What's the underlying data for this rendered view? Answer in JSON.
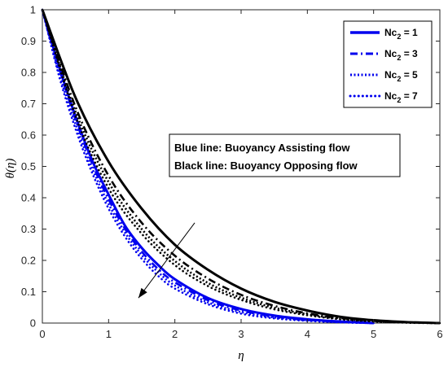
{
  "chart_data": {
    "type": "line",
    "xlabel": "η",
    "ylabel": "θ(η)",
    "xlim": [
      0,
      6
    ],
    "ylim": [
      0,
      1
    ],
    "xticks": [
      0,
      1,
      2,
      3,
      4,
      5,
      6
    ],
    "yticks": [
      0,
      0.1,
      0.2,
      0.3,
      0.4,
      0.5,
      0.6,
      0.7,
      0.8,
      0.9,
      1
    ],
    "grid": false,
    "legend_position": "top-right",
    "legend": [
      {
        "prefix": "Nc",
        "subscript": "2",
        "suffix": " = 1",
        "style": "solid"
      },
      {
        "prefix": "Nc",
        "subscript": "2",
        "suffix": " = 3",
        "style": "dash-dot"
      },
      {
        "prefix": "Nc",
        "subscript": "2",
        "suffix": " = 5",
        "style": "dotted"
      },
      {
        "prefix": "Nc",
        "subscript": "2",
        "suffix": " = 7",
        "style": "point"
      }
    ],
    "annotation": [
      "Blue line: Buoyancy Assisting flow",
      "Black line: Buoyancy Opposing flow"
    ],
    "arrow": {
      "from": [
        2.3,
        0.32
      ],
      "to": [
        1.45,
        0.08
      ]
    },
    "colors": {
      "assisting": "#0000ee",
      "opposing": "#000000"
    },
    "series": [
      {
        "flow": "assisting",
        "style": "solid",
        "x": [
          0,
          0.25,
          0.5,
          0.75,
          1,
          1.25,
          1.5,
          1.75,
          2,
          2.5,
          3,
          3.5,
          4,
          4.5,
          5
        ],
        "y": [
          1,
          0.82,
          0.66,
          0.52,
          0.41,
          0.31,
          0.24,
          0.185,
          0.14,
          0.08,
          0.045,
          0.024,
          0.012,
          0.005,
          0
        ]
      },
      {
        "flow": "assisting",
        "style": "dash-dot",
        "x": [
          0,
          0.25,
          0.5,
          0.75,
          1,
          1.25,
          1.5,
          1.75,
          2,
          2.5,
          3,
          3.5,
          4,
          4.5,
          5
        ],
        "y": [
          1,
          0.815,
          0.65,
          0.51,
          0.395,
          0.3,
          0.228,
          0.172,
          0.13,
          0.073,
          0.04,
          0.021,
          0.01,
          0.004,
          0
        ]
      },
      {
        "flow": "assisting",
        "style": "dotted",
        "x": [
          0,
          0.25,
          0.5,
          0.75,
          1,
          1.25,
          1.5,
          1.75,
          2,
          2.5,
          3,
          3.5,
          4,
          4.5,
          5
        ],
        "y": [
          1,
          0.8,
          0.635,
          0.495,
          0.38,
          0.288,
          0.217,
          0.162,
          0.12,
          0.066,
          0.035,
          0.018,
          0.009,
          0.003,
          0
        ]
      },
      {
        "flow": "assisting",
        "style": "point",
        "x": [
          0,
          0.25,
          0.5,
          0.75,
          1,
          1.25,
          1.5,
          1.75,
          2,
          2.5,
          3,
          3.5,
          4,
          4.5,
          5
        ],
        "y": [
          1,
          0.79,
          0.62,
          0.48,
          0.365,
          0.275,
          0.205,
          0.15,
          0.11,
          0.06,
          0.03,
          0.015,
          0.007,
          0.002,
          0
        ]
      },
      {
        "flow": "opposing",
        "style": "solid",
        "x": [
          0,
          0.5,
          1,
          1.5,
          2,
          2.5,
          3,
          3.5,
          4,
          4.5,
          5,
          5.5,
          6
        ],
        "y": [
          1,
          0.72,
          0.515,
          0.365,
          0.25,
          0.17,
          0.11,
          0.068,
          0.04,
          0.02,
          0.009,
          0.003,
          0
        ]
      },
      {
        "flow": "opposing",
        "style": "dash-dot",
        "x": [
          0,
          0.5,
          1,
          1.5,
          2,
          2.5,
          3,
          3.5,
          4,
          4.5,
          5,
          5.5,
          6
        ],
        "y": [
          1,
          0.69,
          0.47,
          0.32,
          0.215,
          0.142,
          0.09,
          0.055,
          0.031,
          0.016,
          0.007,
          0.002,
          0
        ]
      },
      {
        "flow": "opposing",
        "style": "dotted",
        "x": [
          0,
          0.5,
          1,
          1.5,
          2,
          2.5,
          3,
          3.5,
          4,
          4.5,
          5,
          5.5,
          6
        ],
        "y": [
          1,
          0.675,
          0.45,
          0.3,
          0.198,
          0.128,
          0.081,
          0.049,
          0.028,
          0.014,
          0.006,
          0.002,
          0
        ]
      },
      {
        "flow": "opposing",
        "style": "point",
        "x": [
          0,
          0.5,
          1,
          1.5,
          2,
          2.5,
          3,
          3.5,
          4,
          4.5,
          5,
          5.5,
          6
        ],
        "y": [
          1,
          0.66,
          0.43,
          0.285,
          0.185,
          0.118,
          0.074,
          0.044,
          0.025,
          0.012,
          0.005,
          0.001,
          0
        ]
      }
    ]
  }
}
